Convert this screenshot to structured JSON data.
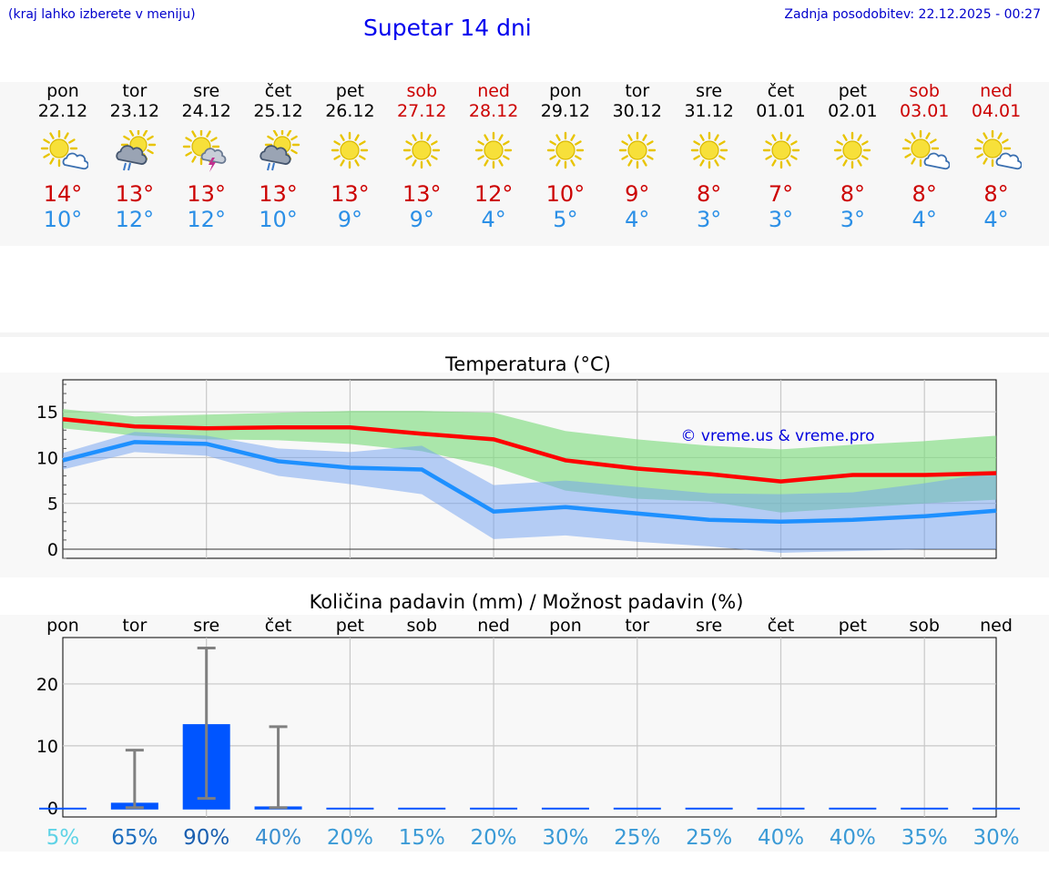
{
  "header": {
    "hint": "(kraj lahko izberete v meniju)",
    "title": "Supetar 14 dni",
    "updated": "Zadnja posodobitev: 22.12.2025 - 00:27"
  },
  "forecast": [
    {
      "day": "pon",
      "date": "22.12",
      "weekend": false,
      "icon": "sun-cloud-icon",
      "max": "14°",
      "min": "10°"
    },
    {
      "day": "tor",
      "date": "23.12",
      "weekend": false,
      "icon": "sun-rain-cloud-icon",
      "max": "13°",
      "min": "12°"
    },
    {
      "day": "sre",
      "date": "24.12",
      "weekend": false,
      "icon": "sun-thunderstorm-icon",
      "max": "13°",
      "min": "12°"
    },
    {
      "day": "čet",
      "date": "25.12",
      "weekend": false,
      "icon": "sun-rain-cloud-icon",
      "max": "13°",
      "min": "10°"
    },
    {
      "day": "pet",
      "date": "26.12",
      "weekend": false,
      "icon": "sun-icon",
      "max": "13°",
      "min": "9°"
    },
    {
      "day": "sob",
      "date": "27.12",
      "weekend": true,
      "icon": "sun-icon",
      "max": "13°",
      "min": "9°"
    },
    {
      "day": "ned",
      "date": "28.12",
      "weekend": true,
      "icon": "sun-icon",
      "max": "12°",
      "min": "4°"
    },
    {
      "day": "pon",
      "date": "29.12",
      "weekend": false,
      "icon": "sun-icon",
      "max": "10°",
      "min": "5°"
    },
    {
      "day": "tor",
      "date": "30.12",
      "weekend": false,
      "icon": "sun-icon",
      "max": "9°",
      "min": "4°"
    },
    {
      "day": "sre",
      "date": "31.12",
      "weekend": false,
      "icon": "sun-icon",
      "max": "8°",
      "min": "3°"
    },
    {
      "day": "čet",
      "date": "01.01",
      "weekend": false,
      "icon": "sun-icon",
      "max": "7°",
      "min": "3°"
    },
    {
      "day": "pet",
      "date": "02.01",
      "weekend": false,
      "icon": "sun-icon",
      "max": "8°",
      "min": "3°"
    },
    {
      "day": "sob",
      "date": "03.01",
      "weekend": true,
      "icon": "sun-cloud-icon",
      "max": "8°",
      "min": "4°"
    },
    {
      "day": "ned",
      "date": "04.01",
      "weekend": true,
      "icon": "sun-cloud-icon",
      "max": "8°",
      "min": "4°"
    }
  ],
  "colors": {
    "max": "#ff0000",
    "min": "#1e90ff",
    "max_band": "#7fdc7f",
    "min_band": "#6f9ff0",
    "bar": "#0055ff",
    "error": "#808080",
    "weekend": "#cc0000"
  },
  "chart_data": [
    {
      "type": "line",
      "title": "Temperatura (°C)",
      "watermark": "© vreme.us & vreme.pro",
      "ylim": [
        -1,
        18.5
      ],
      "yticks": [
        0,
        5,
        10,
        15
      ],
      "x": [
        0,
        1,
        2,
        3,
        4,
        5,
        6,
        7,
        8,
        9,
        10,
        11,
        12,
        13
      ],
      "series": [
        {
          "name": "max",
          "values": [
            14.2,
            13.4,
            13.2,
            13.3,
            13.3,
            12.6,
            12.0,
            9.7,
            8.8,
            8.2,
            7.4,
            8.1,
            8.1,
            8.3
          ],
          "band_low": [
            13.2,
            12.4,
            12.0,
            11.9,
            11.5,
            10.7,
            9.0,
            6.4,
            5.5,
            5.2,
            4.0,
            4.5,
            5.0,
            5.4
          ],
          "band_high": [
            15.3,
            14.5,
            14.7,
            14.9,
            15.1,
            15.1,
            14.9,
            12.9,
            12.0,
            11.3,
            10.9,
            11.4,
            11.8,
            12.4
          ]
        },
        {
          "name": "min",
          "values": [
            9.7,
            11.7,
            11.5,
            9.6,
            8.9,
            8.7,
            4.1,
            4.6,
            3.9,
            3.2,
            3.0,
            3.2,
            3.6,
            4.2
          ],
          "band_low": [
            8.7,
            10.6,
            10.2,
            8.0,
            7.1,
            6.0,
            1.1,
            1.5,
            0.8,
            0.3,
            -0.4,
            -0.2,
            0.0,
            0.0
          ],
          "band_high": [
            10.5,
            12.8,
            12.4,
            11.0,
            10.6,
            11.3,
            7.0,
            7.5,
            6.8,
            6.1,
            6.0,
            6.2,
            7.2,
            8.4
          ]
        }
      ]
    },
    {
      "type": "bar",
      "title": "Količina padavin (mm) / Možnost padavin (%)",
      "categories": [
        "pon",
        "tor",
        "sre",
        "čet",
        "pet",
        "sob",
        "ned",
        "pon",
        "tor",
        "sre",
        "čet",
        "pet",
        "sob",
        "ned"
      ],
      "values": [
        0,
        0.8,
        13.5,
        0.2,
        0,
        0,
        0,
        0,
        0,
        0,
        0,
        0,
        0,
        0
      ],
      "error_high": [
        0,
        9.3,
        25.8,
        13.1,
        0,
        0,
        0,
        0,
        0,
        0,
        0,
        0,
        0,
        0
      ],
      "error_low": [
        0,
        0,
        1.5,
        0,
        0,
        0,
        0,
        0,
        0,
        0,
        0,
        0,
        0,
        0
      ],
      "chance": [
        "5%",
        "65%",
        "90%",
        "40%",
        "20%",
        "15%",
        "20%",
        "30%",
        "25%",
        "25%",
        "40%",
        "40%",
        "35%",
        "30%"
      ],
      "chance_colors": [
        "#5fd3e6",
        "#1f6fbf",
        "#1a5fb0",
        "#3a8fd0",
        "#3a9ad6",
        "#3a9ad6",
        "#3a9ad6",
        "#3a9ad6",
        "#3a9ad6",
        "#3a9ad6",
        "#3a9ad6",
        "#3a9ad6",
        "#3a9ad6",
        "#3a9ad6"
      ],
      "ylim": [
        -1.5,
        27.5
      ],
      "yticks": [
        0,
        10,
        20
      ]
    }
  ]
}
